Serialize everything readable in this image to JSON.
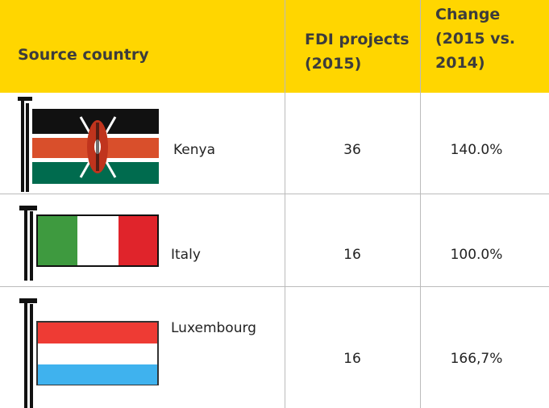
{
  "table": {
    "header": [
      "Source country",
      "FDI projects (2015)",
      "Change (2015 vs. 2014)"
    ],
    "rows": [
      [
        "Kenya",
        "36",
        "140.0%"
      ],
      [
        "Italy",
        "16",
        "100.0%"
      ],
      [
        "Luxembourg",
        "16",
        "166,7%"
      ]
    ]
  }
}
